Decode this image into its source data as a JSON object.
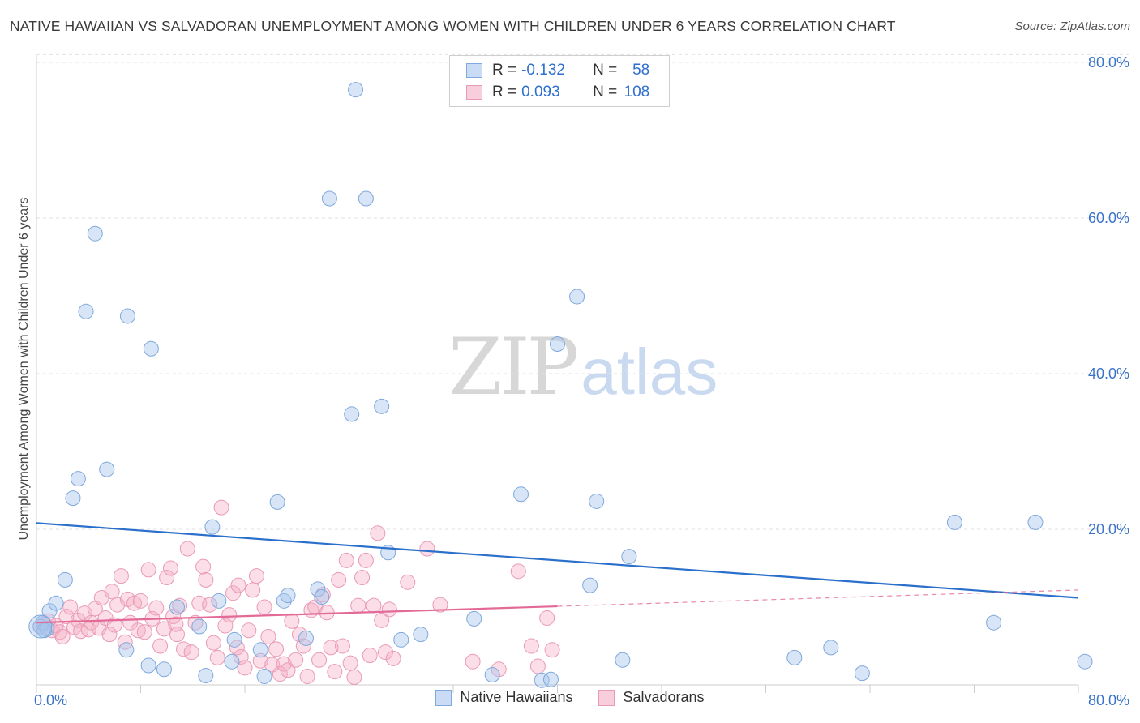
{
  "header": {
    "title": "NATIVE HAWAIIAN VS SALVADORAN UNEMPLOYMENT AMONG WOMEN WITH CHILDREN UNDER 6 YEARS CORRELATION CHART",
    "source": "Source: ZipAtlas.com"
  },
  "watermark": {
    "zip": "ZIP",
    "atlas": "atlas"
  },
  "legend": {
    "rows": [
      {
        "r_label": "R =",
        "r_value": "-0.132",
        "n_label": "N =",
        "n_value": "58"
      },
      {
        "r_label": "R =",
        "r_value": "0.093",
        "n_label": "N =",
        "n_value": "108"
      }
    ]
  },
  "bottom_legend": {
    "series1": "Native Hawaiians",
    "series2": "Salvadorans"
  },
  "colors": {
    "blue_fill": "rgba(167,197,238,0.45)",
    "blue_stroke": "#7fa8dc",
    "blue_line": "#2a6fcb",
    "pink_fill": "rgba(244,172,196,0.40)",
    "pink_stroke": "#e99ab6",
    "pink_line": "#e36a97",
    "grid": "#e2e2e2",
    "tick_text": "#3a73c8"
  },
  "chart_data": {
    "type": "scatter",
    "title": "NATIVE HAWAIIAN VS SALVADORAN UNEMPLOYMENT AMONG WOMEN WITH CHILDREN UNDER 6 YEARS CORRELATION CHART",
    "xlabel": "",
    "ylabel": "Unemployment Among Women with Children Under 6 years",
    "xlim": [
      0,
      80
    ],
    "ylim": [
      0,
      82
    ],
    "x_tick_labels": [
      "0.0%",
      "80.0%"
    ],
    "y_ticks": [
      20,
      40,
      60,
      80
    ],
    "y_tick_labels": [
      "20.0%",
      "40.0%",
      "60.0%",
      "80.0%"
    ],
    "grid": true,
    "series": [
      {
        "name": "Native Hawaiians",
        "r": -0.132,
        "n": 58,
        "trend": {
          "x": [
            0,
            80
          ],
          "y": [
            20.8,
            11.2
          ]
        },
        "points": [
          [
            0.3,
            7.5
          ],
          [
            0.5,
            8.0
          ],
          [
            0.8,
            7.2
          ],
          [
            1.0,
            9.5
          ],
          [
            1.5,
            10.5
          ],
          [
            2.2,
            13.5
          ],
          [
            2.8,
            24.0
          ],
          [
            3.2,
            26.5
          ],
          [
            3.8,
            48.0
          ],
          [
            4.5,
            58.0
          ],
          [
            5.4,
            27.7
          ],
          [
            7.0,
            47.4
          ],
          [
            8.8,
            43.2
          ],
          [
            6.9,
            4.5
          ],
          [
            8.6,
            2.5
          ],
          [
            9.8,
            2.0
          ],
          [
            10.8,
            10.0
          ],
          [
            12.5,
            7.5
          ],
          [
            13.0,
            1.2
          ],
          [
            13.5,
            20.3
          ],
          [
            14.0,
            10.8
          ],
          [
            15.0,
            3.0
          ],
          [
            15.2,
            5.8
          ],
          [
            17.2,
            4.5
          ],
          [
            17.5,
            1.1
          ],
          [
            18.5,
            23.5
          ],
          [
            19.0,
            10.8
          ],
          [
            19.3,
            11.5
          ],
          [
            20.7,
            6.0
          ],
          [
            21.6,
            12.3
          ],
          [
            21.9,
            11.3
          ],
          [
            22.5,
            62.5
          ],
          [
            24.2,
            34.8
          ],
          [
            24.5,
            76.5
          ],
          [
            25.3,
            62.5
          ],
          [
            26.5,
            35.8
          ],
          [
            27.0,
            17.0
          ],
          [
            28.0,
            5.8
          ],
          [
            29.5,
            6.5
          ],
          [
            33.6,
            8.5
          ],
          [
            35.0,
            1.3
          ],
          [
            37.2,
            24.5
          ],
          [
            38.8,
            0.6
          ],
          [
            39.5,
            0.7
          ],
          [
            40.0,
            43.8
          ],
          [
            41.5,
            49.9
          ],
          [
            42.5,
            12.8
          ],
          [
            43.0,
            23.6
          ],
          [
            45.0,
            3.2
          ],
          [
            45.5,
            16.5
          ],
          [
            58.2,
            3.5
          ],
          [
            61.0,
            4.8
          ],
          [
            63.4,
            1.5
          ],
          [
            70.5,
            20.9
          ],
          [
            73.5,
            8.0
          ],
          [
            76.7,
            20.9
          ],
          [
            80.5,
            3.0
          ],
          [
            0.6,
            7.0
          ]
        ]
      },
      {
        "name": "Salvadorans",
        "r": 0.093,
        "n": 108,
        "trend": {
          "x": [
            0,
            40
          ],
          "y": [
            8.0,
            10.1
          ]
        },
        "trend_dashed": {
          "x": [
            40,
            80
          ],
          "y": [
            10.1,
            12.2
          ]
        },
        "points": [
          [
            0.3,
            7.5
          ],
          [
            0.6,
            7.8
          ],
          [
            0.9,
            8.2
          ],
          [
            1.2,
            7.0
          ],
          [
            1.5,
            7.6
          ],
          [
            1.8,
            6.8
          ],
          [
            2.0,
            6.2
          ],
          [
            2.3,
            8.8
          ],
          [
            2.6,
            10.0
          ],
          [
            2.9,
            7.4
          ],
          [
            3.2,
            8.3
          ],
          [
            3.4,
            6.9
          ],
          [
            3.7,
            9.2
          ],
          [
            4.0,
            7.1
          ],
          [
            4.2,
            8.0
          ],
          [
            4.5,
            9.8
          ],
          [
            4.8,
            7.3
          ],
          [
            5.0,
            11.2
          ],
          [
            5.3,
            8.6
          ],
          [
            5.6,
            6.5
          ],
          [
            5.8,
            12.0
          ],
          [
            6.0,
            7.7
          ],
          [
            6.2,
            10.3
          ],
          [
            6.5,
            14.0
          ],
          [
            6.8,
            5.5
          ],
          [
            7.0,
            11.0
          ],
          [
            7.2,
            8.0
          ],
          [
            7.5,
            10.5
          ],
          [
            7.8,
            7.0
          ],
          [
            8.0,
            10.8
          ],
          [
            8.3,
            6.8
          ],
          [
            8.6,
            14.8
          ],
          [
            8.9,
            8.5
          ],
          [
            9.2,
            9.9
          ],
          [
            9.5,
            5.0
          ],
          [
            9.8,
            7.2
          ],
          [
            10.0,
            13.8
          ],
          [
            10.3,
            15.0
          ],
          [
            10.5,
            8.8
          ],
          [
            10.8,
            6.5
          ],
          [
            11.0,
            10.2
          ],
          [
            11.3,
            4.6
          ],
          [
            11.6,
            17.5
          ],
          [
            11.9,
            4.2
          ],
          [
            12.2,
            8.0
          ],
          [
            12.5,
            10.5
          ],
          [
            12.8,
            15.2
          ],
          [
            13.0,
            13.5
          ],
          [
            13.3,
            10.3
          ],
          [
            13.6,
            5.4
          ],
          [
            13.9,
            3.5
          ],
          [
            14.2,
            22.8
          ],
          [
            14.5,
            7.6
          ],
          [
            14.8,
            9.0
          ],
          [
            15.1,
            11.8
          ],
          [
            15.4,
            4.8
          ],
          [
            15.7,
            3.6
          ],
          [
            16.0,
            2.2
          ],
          [
            16.3,
            7.0
          ],
          [
            16.6,
            12.2
          ],
          [
            16.9,
            14.0
          ],
          [
            17.2,
            3.1
          ],
          [
            17.5,
            10.0
          ],
          [
            17.8,
            6.2
          ],
          [
            18.1,
            2.6
          ],
          [
            18.4,
            4.6
          ],
          [
            18.7,
            1.4
          ],
          [
            19.0,
            2.7
          ],
          [
            19.3,
            1.9
          ],
          [
            19.6,
            8.2
          ],
          [
            19.9,
            3.2
          ],
          [
            20.2,
            6.5
          ],
          [
            20.5,
            5.0
          ],
          [
            20.8,
            1.1
          ],
          [
            21.1,
            9.6
          ],
          [
            21.4,
            10.0
          ],
          [
            21.7,
            3.2
          ],
          [
            22.0,
            11.6
          ],
          [
            22.3,
            9.3
          ],
          [
            22.6,
            4.8
          ],
          [
            22.9,
            1.7
          ],
          [
            23.2,
            13.5
          ],
          [
            23.5,
            5.0
          ],
          [
            23.8,
            16.0
          ],
          [
            24.1,
            2.8
          ],
          [
            24.4,
            1.0
          ],
          [
            24.7,
            10.2
          ],
          [
            25.0,
            13.8
          ],
          [
            25.3,
            16.0
          ],
          [
            25.6,
            3.8
          ],
          [
            25.9,
            10.2
          ],
          [
            26.2,
            19.5
          ],
          [
            26.5,
            8.3
          ],
          [
            26.8,
            4.2
          ],
          [
            27.1,
            9.7
          ],
          [
            27.4,
            3.4
          ],
          [
            28.5,
            13.2
          ],
          [
            30.0,
            17.5
          ],
          [
            31.0,
            10.3
          ],
          [
            33.5,
            3.0
          ],
          [
            35.5,
            2.0
          ],
          [
            37.0,
            14.6
          ],
          [
            38.0,
            5.0
          ],
          [
            38.5,
            2.4
          ],
          [
            39.2,
            8.6
          ],
          [
            39.6,
            4.5
          ],
          [
            10.7,
            7.8
          ],
          [
            15.5,
            12.8
          ]
        ]
      }
    ]
  }
}
